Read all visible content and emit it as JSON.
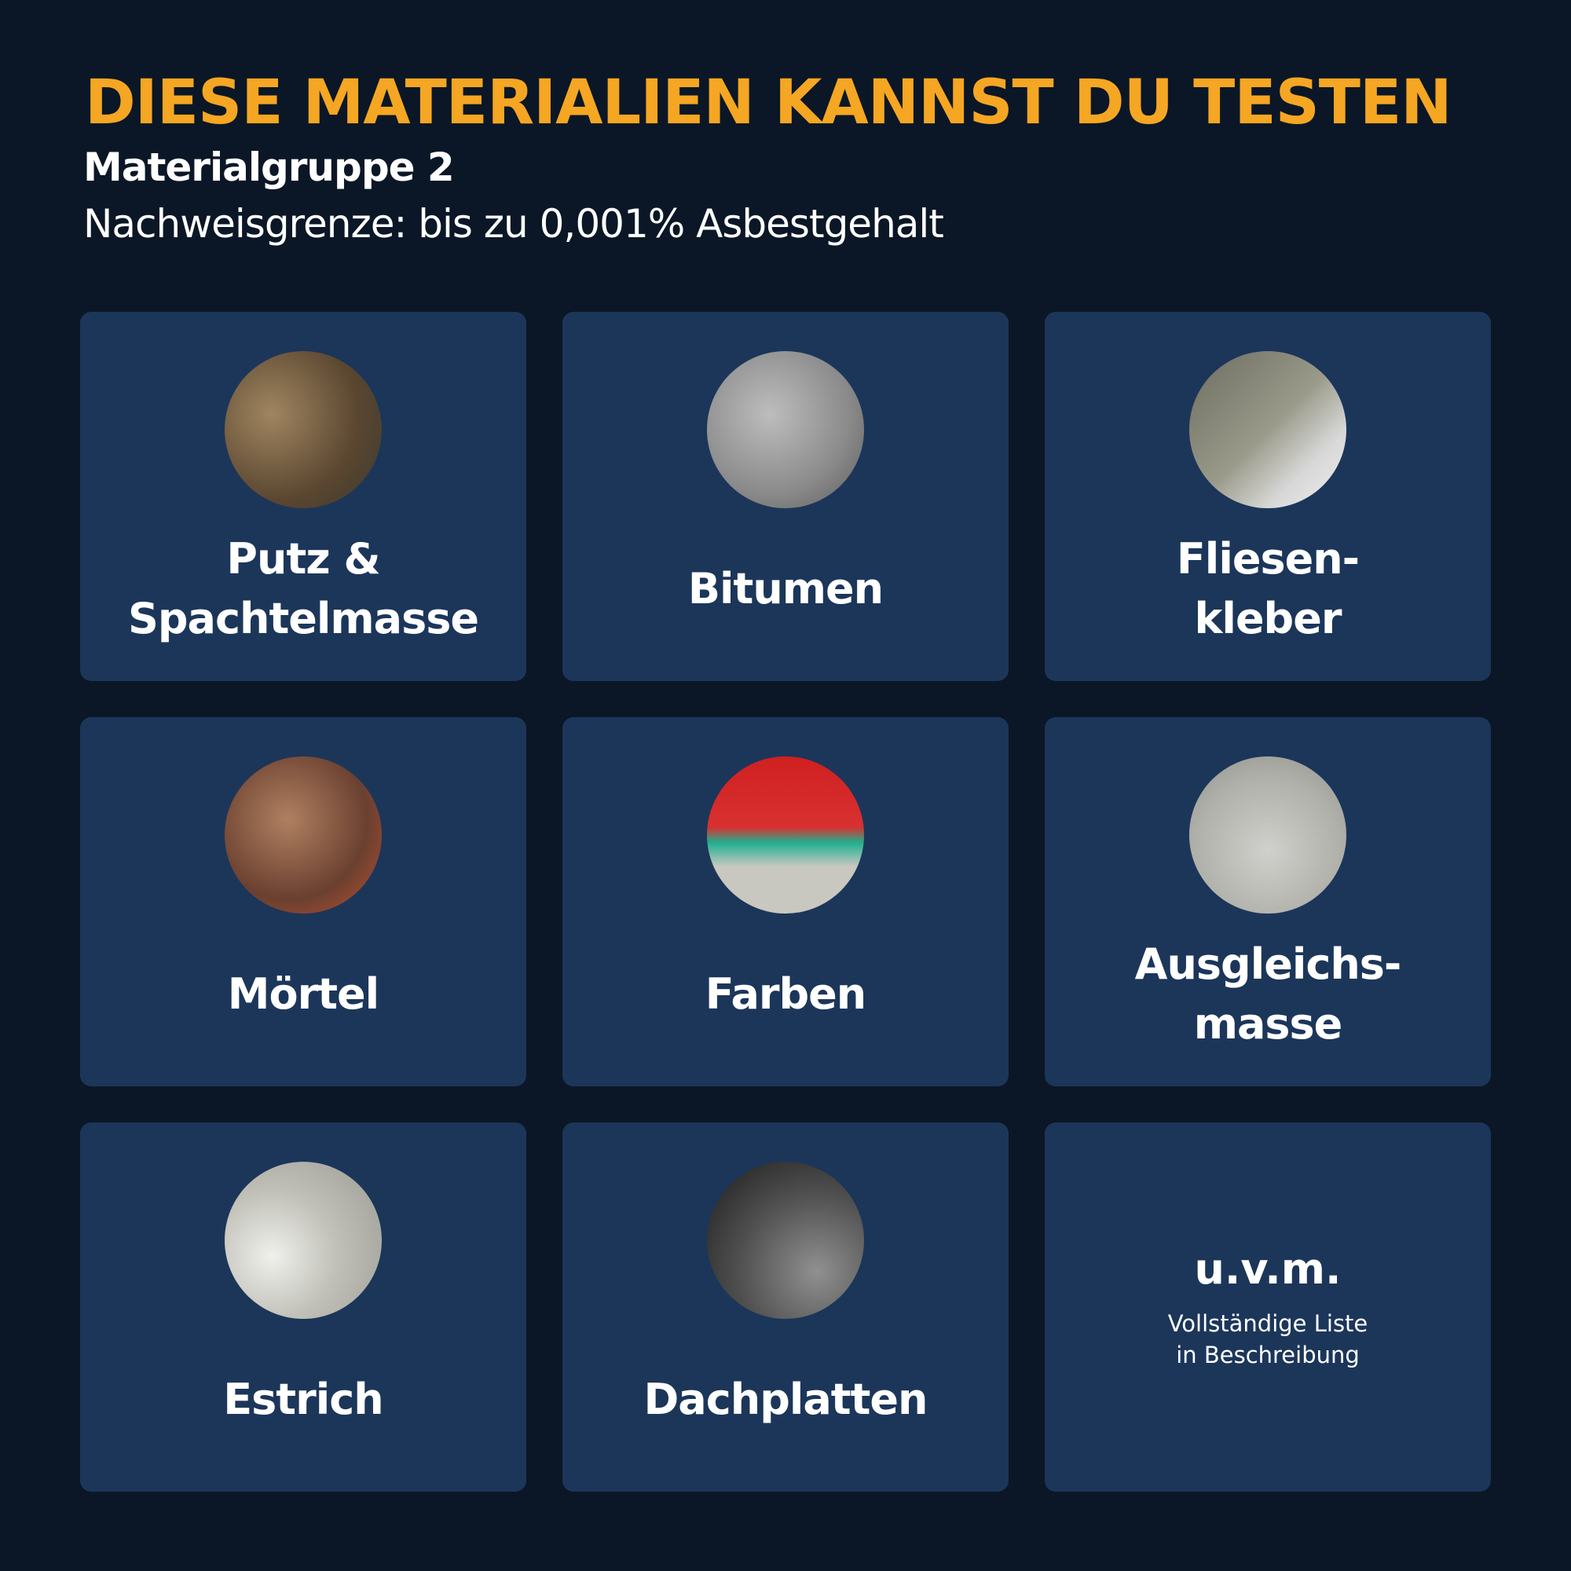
{
  "header": {
    "title": "DIESE MATERIALIEN KANNST DU TESTEN",
    "subtitle": "Materialgruppe 2",
    "detection_limit": "Nachweisgrenze: bis zu 0,001% Asbestgehalt"
  },
  "colors": {
    "background": "#0b1726",
    "card": "#1c365a",
    "accent": "#f5a623"
  },
  "materials": [
    {
      "label": "Putz &\nSpachtelmasse",
      "image": "plaster-trowel-photo"
    },
    {
      "label": "Bitumen",
      "image": "bitumen-texture-photo"
    },
    {
      "label": "Fliesen-\nkleber",
      "image": "tile-adhesive-photo"
    },
    {
      "label": "Mörtel",
      "image": "mortar-trowel-photo"
    },
    {
      "label": "Farben",
      "image": "paint-peeling-photo"
    },
    {
      "label": "Ausgleichs-\nmasse",
      "image": "leveling-roller-photo"
    },
    {
      "label": "Estrich",
      "image": "screed-texture-photo"
    },
    {
      "label": "Dachplatten",
      "image": "roof-tile-photo"
    }
  ],
  "more": {
    "title": "u.v.m.",
    "note": "Vollständige Liste\nin Beschreibung"
  }
}
